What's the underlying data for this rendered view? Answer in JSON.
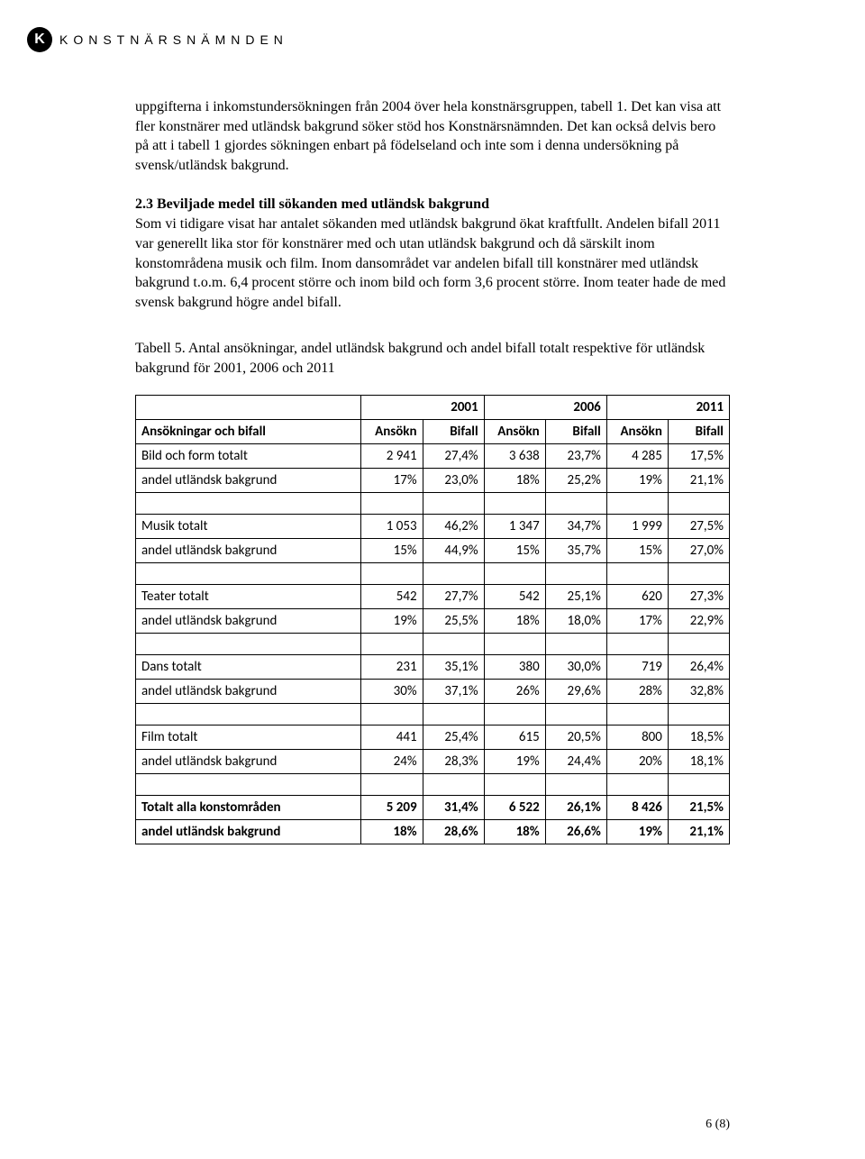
{
  "logo": {
    "mark": "K",
    "text": "KONSTNÄRSNÄMNDEN"
  },
  "para1": "uppgifterna i inkomstundersökningen från 2004 över hela konstnärsgruppen, tabell 1. Det kan visa att fler konstnärer med utländsk bakgrund söker stöd hos Konstnärsnämnden. Det kan också delvis bero på att i tabell 1 gjordes sökningen enbart på födelseland och inte som i denna undersökning på svensk/utländsk bakgrund.",
  "section_head": "2.3 Beviljade medel till sökanden med utländsk bakgrund",
  "para2": "Som vi tidigare visat har antalet sökanden med utländsk bakgrund ökat kraftfullt. Andelen bifall 2011 var generellt lika stor för konstnärer med och utan utländsk bakgrund och då särskilt inom konstområdena musik och film. Inom dansområdet var andelen bifall till konstnärer med utländsk bakgrund t.o.m. 6,4 procent större och inom bild och form 3,6 procent större. Inom teater hade de med svensk bakgrund högre andel bifall.",
  "caption": "Tabell 5. Antal ansökningar, andel utländsk bakgrund och andel bifall totalt respektive för utländsk bakgrund för 2001, 2006 och 2011",
  "table": {
    "years": [
      "2001",
      "2006",
      "2011"
    ],
    "header_row_label": "Ansökningar och bifall",
    "subheaders": [
      "Ansökn",
      "Bifall",
      "Ansökn",
      "Bifall",
      "Ansökn",
      "Bifall"
    ],
    "groups": [
      {
        "total": {
          "label": "Bild och form totalt",
          "cells": [
            "2 941",
            "27,4%",
            "3 638",
            "23,7%",
            "4 285",
            "17,5%"
          ]
        },
        "share": {
          "label": "andel utländsk bakgrund",
          "cells": [
            "17%",
            "23,0%",
            "18%",
            "25,2%",
            "19%",
            "21,1%"
          ]
        }
      },
      {
        "total": {
          "label": "Musik totalt",
          "cells": [
            "1 053",
            "46,2%",
            "1 347",
            "34,7%",
            "1 999",
            "27,5%"
          ]
        },
        "share": {
          "label": "andel utländsk bakgrund",
          "cells": [
            "15%",
            "44,9%",
            "15%",
            "35,7%",
            "15%",
            "27,0%"
          ]
        }
      },
      {
        "total": {
          "label": "Teater totalt",
          "cells": [
            "542",
            "27,7%",
            "542",
            "25,1%",
            "620",
            "27,3%"
          ]
        },
        "share": {
          "label": "andel utländsk bakgrund",
          "cells": [
            "19%",
            "25,5%",
            "18%",
            "18,0%",
            "17%",
            "22,9%"
          ]
        }
      },
      {
        "total": {
          "label": "Dans totalt",
          "cells": [
            "231",
            "35,1%",
            "380",
            "30,0%",
            "719",
            "26,4%"
          ]
        },
        "share": {
          "label": "andel utländsk bakgrund",
          "cells": [
            "30%",
            "37,1%",
            "26%",
            "29,6%",
            "28%",
            "32,8%"
          ]
        }
      },
      {
        "total": {
          "label": "Film totalt",
          "cells": [
            "441",
            "25,4%",
            "615",
            "20,5%",
            "800",
            "18,5%"
          ]
        },
        "share": {
          "label": "andel utländsk bakgrund",
          "cells": [
            "24%",
            "28,3%",
            "19%",
            "24,4%",
            "20%",
            "18,1%"
          ]
        }
      }
    ],
    "grand": {
      "total": {
        "label": "Totalt alla konstområden",
        "cells": [
          "5 209",
          "31,4%",
          "6 522",
          "26,1%",
          "8 426",
          "21,5%"
        ]
      },
      "share": {
        "label": "andel utländsk bakgrund",
        "cells": [
          "18%",
          "28,6%",
          "18%",
          "26,6%",
          "19%",
          "21,1%"
        ]
      }
    }
  },
  "page_num": "6 (8)"
}
